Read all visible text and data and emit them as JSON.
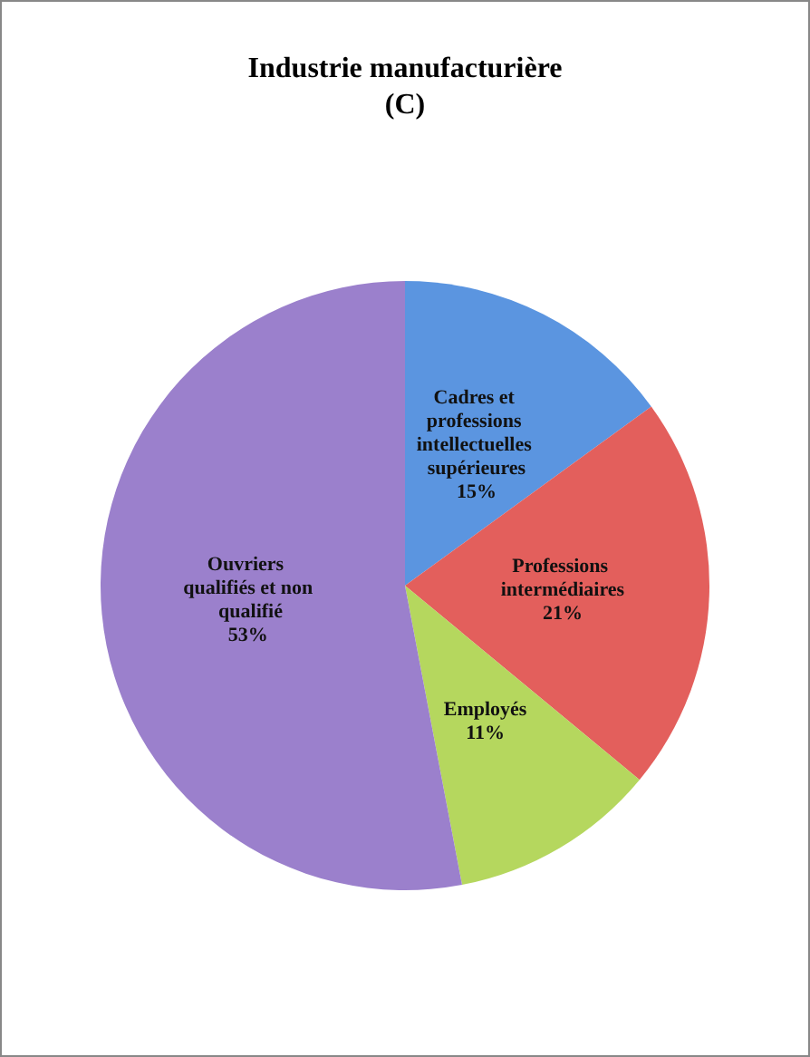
{
  "chart_data": {
    "type": "pie",
    "title": "Industrie manufacturière\n(C)",
    "categories": [
      "Cadres et professions intellectuelles supérieures",
      "Professions intermédiaires",
      "Employés",
      "Ouvriers qualifiés et non qualifié"
    ],
    "values": [
      15,
      21,
      11,
      53
    ],
    "colors": [
      "#5b95e0",
      "#e35f5c",
      "#b5d75e",
      "#9b80cc"
    ],
    "value_labels": [
      "15%",
      "21%",
      "11%",
      "53%"
    ],
    "legend": false
  }
}
